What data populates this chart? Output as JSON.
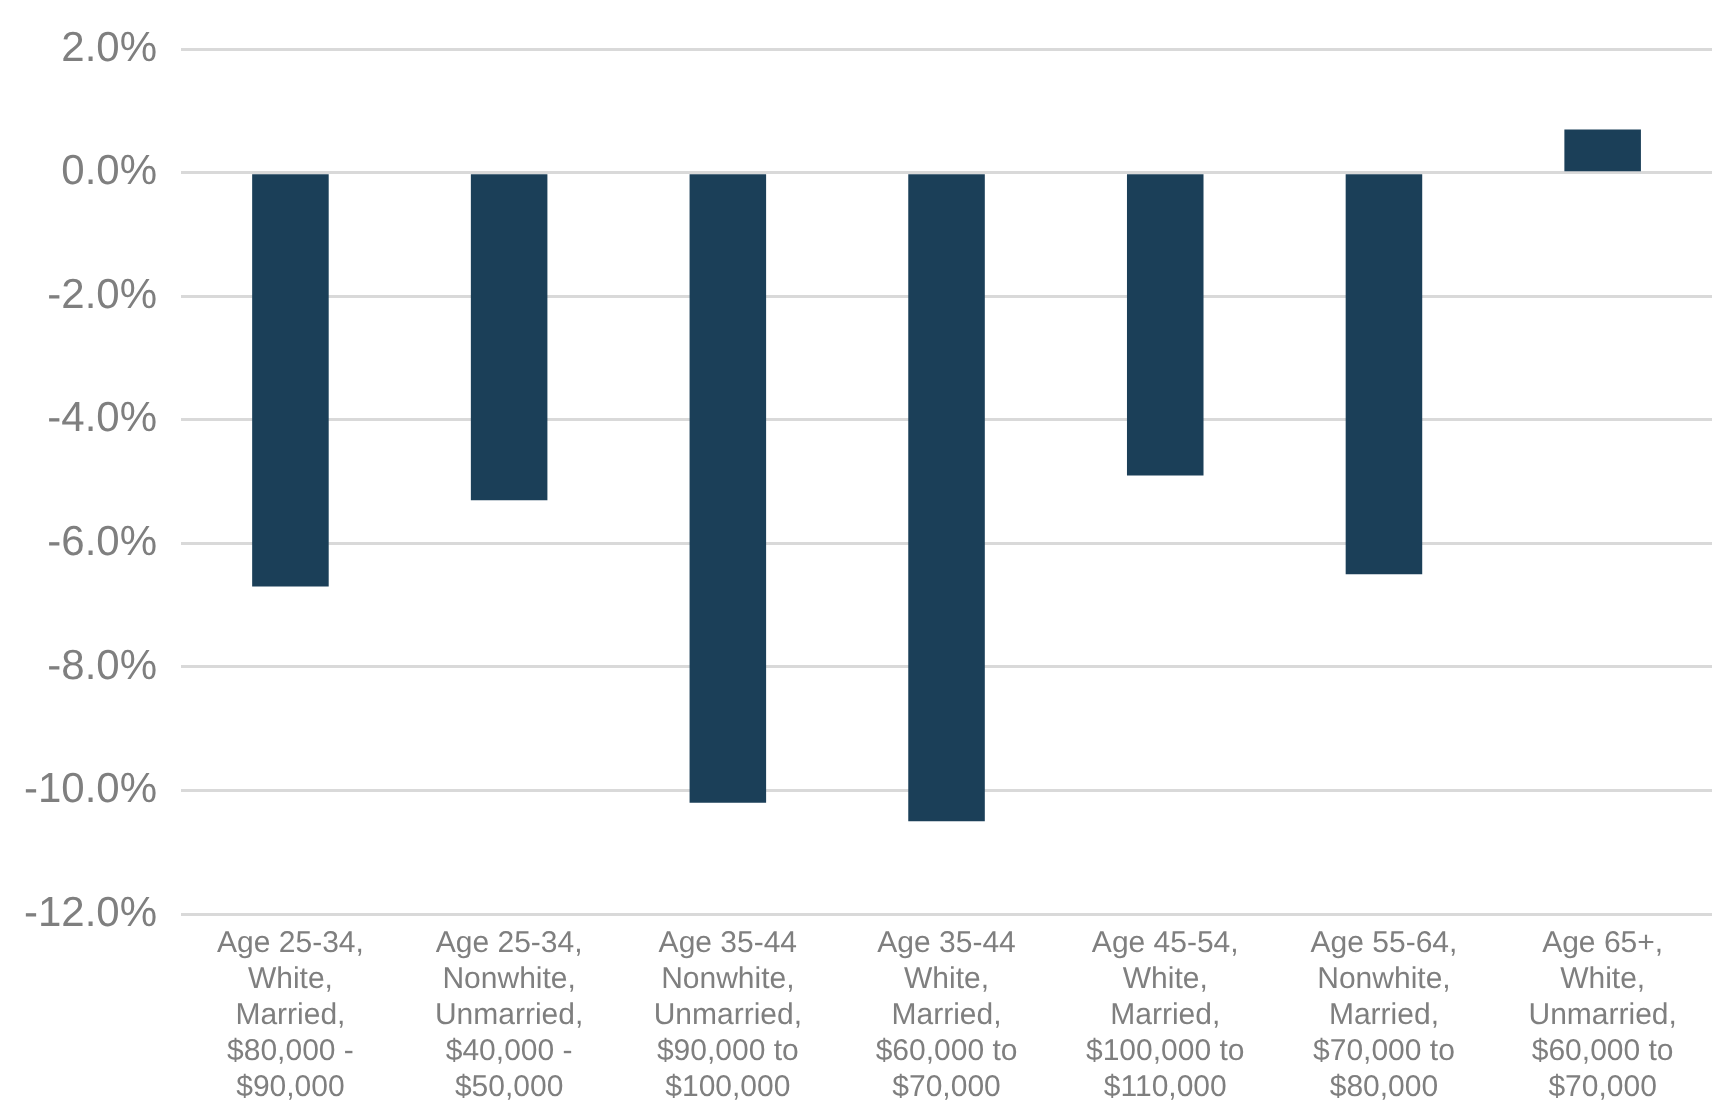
{
  "chart_data": {
    "type": "bar",
    "categories": [
      "Age 25-34, White, Married, $80,000 - $90,000",
      "Age 25-34, Nonwhite, Unmarried, $40,000 - $50,000",
      "Age 35-44 Nonwhite, Unmarried, $90,000 to $100,000",
      "Age 35-44 White, Married, $60,000 to $70,000",
      "Age 45-54, White, Married, $100,000 to $110,000",
      "Age 55-64, Nonwhite, Married, $70,000 to $80,000",
      "Age 65+, White, Unmarried, $60,000 to $70,000"
    ],
    "values": [
      -6.7,
      -5.3,
      -10.2,
      -10.5,
      -4.9,
      -6.5,
      0.7
    ],
    "color": "#1b3f58",
    "ylim": [
      -12,
      2
    ],
    "yticks": [
      {
        "value": 2,
        "label": "2.0%"
      },
      {
        "value": 0,
        "label": "0.0%"
      },
      {
        "value": -2,
        "label": "-2.0%"
      },
      {
        "value": -4,
        "label": "-4.0%"
      },
      {
        "value": -6,
        "label": "-6.0%"
      },
      {
        "value": -8,
        "label": "-8.0%"
      },
      {
        "value": -10,
        "label": "-10.0%"
      },
      {
        "value": -12,
        "label": "-12.0%"
      }
    ],
    "grid": "y",
    "legend": false
  }
}
